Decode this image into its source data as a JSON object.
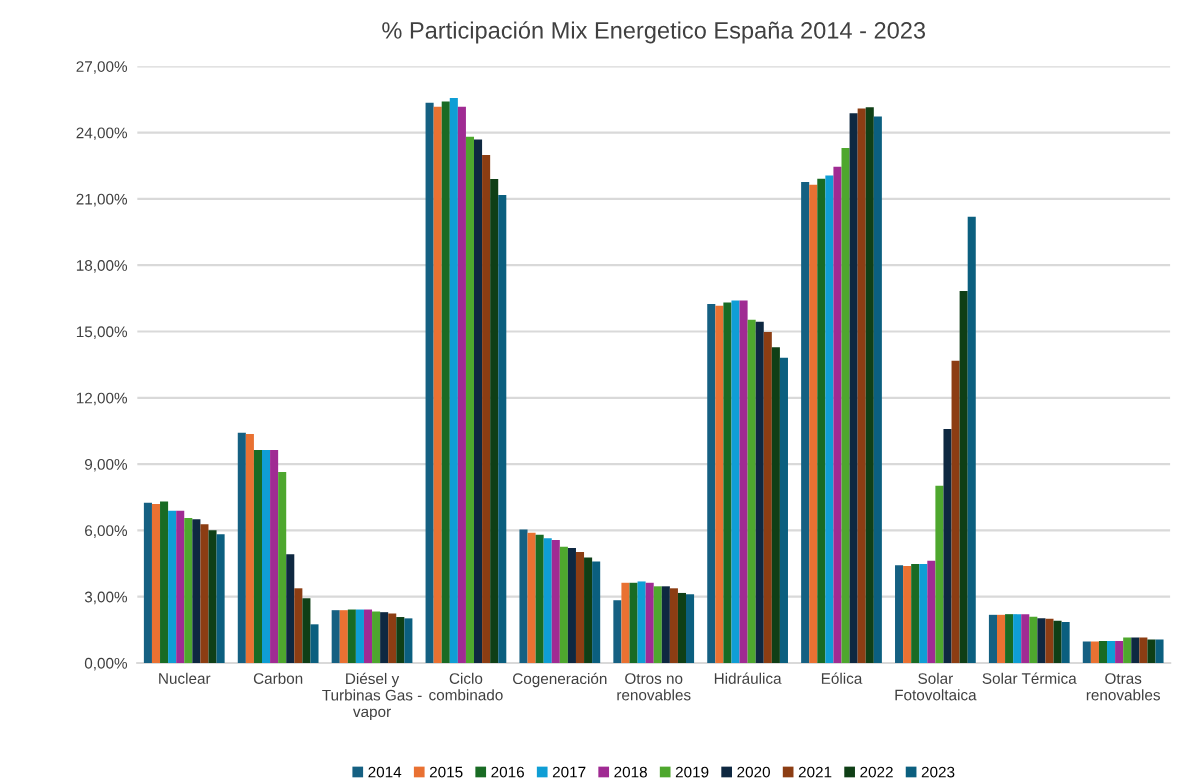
{
  "chart_data": {
    "type": "bar",
    "title": "% Participación Mix Energetico España 2014 - 2023",
    "categories": [
      "Nuclear",
      "Carbon",
      "Diésel y\nTurbinas Gas -\nvapor",
      "Ciclo\ncombinado",
      "Cogeneración",
      "Otros no\nrenovables",
      "Hidráulica",
      "Eólica",
      "Solar\nFotovoltaica",
      "Solar Térmica",
      "Otras\nrenovables"
    ],
    "series": [
      {
        "name": "2014",
        "color": "#156082",
        "values": [
          7.25,
          10.42,
          2.39,
          25.35,
          6.04,
          2.84,
          16.25,
          21.76,
          4.42,
          2.18,
          0.97
        ]
      },
      {
        "name": "2015",
        "color": "#e97132",
        "values": [
          7.19,
          10.36,
          2.39,
          25.17,
          5.89,
          3.63,
          16.16,
          21.64,
          4.39,
          2.18,
          0.97
        ]
      },
      {
        "name": "2016",
        "color": "#196b24",
        "values": [
          7.31,
          9.64,
          2.42,
          25.41,
          5.8,
          3.63,
          16.31,
          21.91,
          4.48,
          2.21,
          1.0
        ]
      },
      {
        "name": "2017",
        "color": "#0f9ed5",
        "values": [
          6.89,
          9.64,
          2.42,
          25.56,
          5.65,
          3.69,
          16.4,
          22.06,
          4.48,
          2.21,
          1.0
        ]
      },
      {
        "name": "2018",
        "color": "#a02b93",
        "values": [
          6.89,
          9.64,
          2.42,
          25.17,
          5.56,
          3.63,
          16.4,
          22.46,
          4.63,
          2.21,
          1.0
        ]
      },
      {
        "name": "2019",
        "color": "#4ea72e",
        "values": [
          6.56,
          8.64,
          2.33,
          23.81,
          5.26,
          3.47,
          15.53,
          23.3,
          8.02,
          2.09,
          1.15
        ]
      },
      {
        "name": "2020",
        "color": "#0e2841",
        "values": [
          6.5,
          4.92,
          2.3,
          23.69,
          5.2,
          3.47,
          15.44,
          24.88,
          10.59,
          2.03,
          1.15
        ]
      },
      {
        "name": "2021",
        "color": "#8c3d13",
        "values": [
          6.28,
          3.38,
          2.24,
          22.99,
          5.02,
          3.38,
          14.98,
          25.09,
          13.68,
          2.0,
          1.15
        ]
      },
      {
        "name": "2022",
        "color": "#0f3f16",
        "values": [
          6.01,
          2.93,
          2.08,
          21.9,
          4.77,
          3.17,
          14.29,
          25.15,
          16.83,
          1.91,
          1.06
        ]
      },
      {
        "name": "2023",
        "color": "#0b5f7f",
        "values": [
          5.83,
          1.75,
          2.02,
          21.18,
          4.59,
          3.11,
          13.81,
          24.73,
          20.19,
          1.85,
          1.06
        ]
      }
    ],
    "ylim": [
      0,
      27
    ],
    "yticks": [
      {
        "value": 0,
        "label": "0,00%"
      },
      {
        "value": 3,
        "label": "3,00%"
      },
      {
        "value": 6,
        "label": "6,00%"
      },
      {
        "value": 9,
        "label": "9,00%"
      },
      {
        "value": 12,
        "label": "12,00%"
      },
      {
        "value": 15,
        "label": "15,00%"
      },
      {
        "value": 18,
        "label": "18,00%"
      },
      {
        "value": 21,
        "label": "21,00%"
      },
      {
        "value": 24,
        "label": "24,00%"
      },
      {
        "value": 27,
        "label": "27,00%"
      }
    ],
    "grid": "y",
    "legend": "bottom"
  }
}
